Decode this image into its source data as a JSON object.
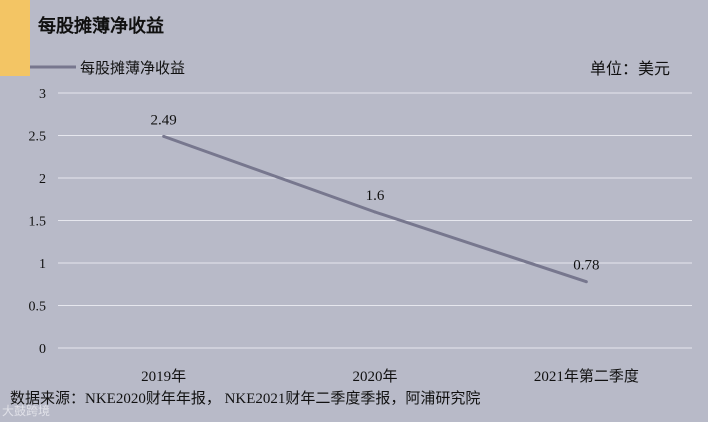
{
  "header": {
    "title": "每股摊薄净收益",
    "unit": "单位：美元"
  },
  "source": "数据来源：NKE2020财年年报， NKE2021财年二季度季报，阿浦研究院",
  "watermark": "大鼓跨境",
  "colors": {
    "background": "#b8bac8",
    "accent": "#f3c564",
    "line": "#77778e",
    "grid": "#e6e7ee"
  },
  "chart_data": {
    "type": "line",
    "title": "每股摊薄净收益",
    "categories": [
      "2019年",
      "2020年",
      "2021年第二季度"
    ],
    "series": [
      {
        "name": "每股摊薄净收益",
        "values": [
          2.49,
          1.6,
          0.78
        ]
      }
    ],
    "ylim": [
      0,
      3
    ],
    "yticks": [
      "0",
      "0.5",
      "1",
      "1.5",
      "2",
      "2.5",
      "3"
    ],
    "grid": true,
    "legend": "top-left"
  }
}
